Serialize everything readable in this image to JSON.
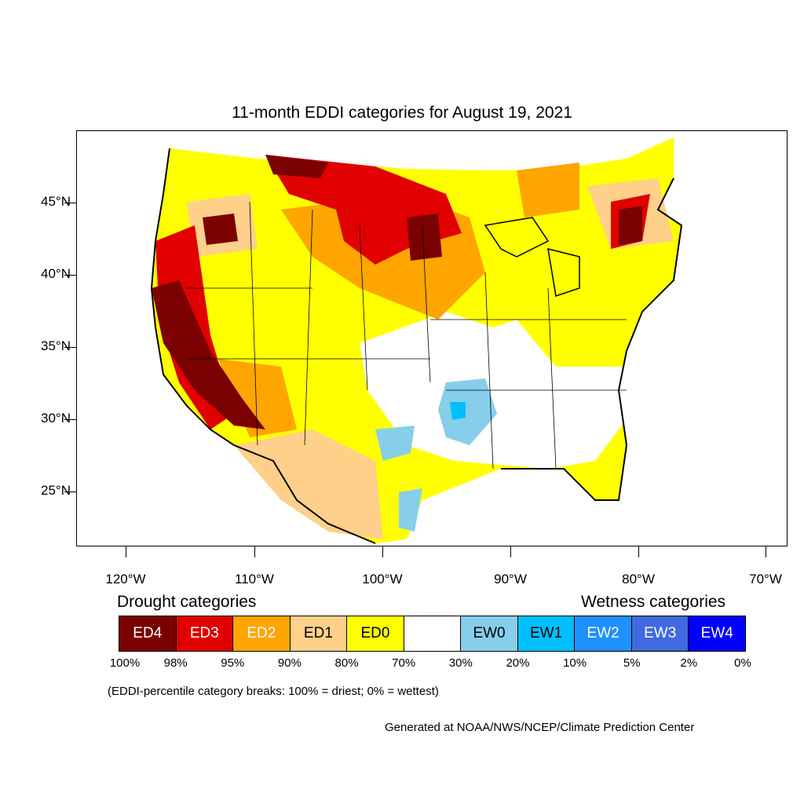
{
  "title": "11-month EDDI categories for August 19, 2021",
  "axes": {
    "lat_labels": [
      "45°N",
      "40°N",
      "35°N",
      "30°N",
      "25°N"
    ],
    "lon_labels": [
      "120°W",
      "110°W",
      "100°W",
      "90°W",
      "80°W",
      "70°W"
    ]
  },
  "legend": {
    "drought_heading": "Drought categories",
    "wetness_heading": "Wetness categories",
    "categories": [
      {
        "label": "ED4",
        "color": "#7b0000",
        "text_color": "#ffffff"
      },
      {
        "label": "ED3",
        "color": "#e00000",
        "text_color": "#ffffff"
      },
      {
        "label": "ED2",
        "color": "#ffa500",
        "text_color": "#ffffff"
      },
      {
        "label": "ED1",
        "color": "#fed08a",
        "text_color": "#000000"
      },
      {
        "label": "ED0",
        "color": "#ffff00",
        "text_color": "#000000"
      },
      {
        "label": "",
        "color": "#ffffff",
        "text_color": "#000000"
      },
      {
        "label": "EW0",
        "color": "#87ceeb",
        "text_color": "#000000"
      },
      {
        "label": "EW1",
        "color": "#00bfff",
        "text_color": "#000000"
      },
      {
        "label": "EW2",
        "color": "#1e90ff",
        "text_color": "#ffffff"
      },
      {
        "label": "EW3",
        "color": "#4169e1",
        "text_color": "#ffffff"
      },
      {
        "label": "EW4",
        "color": "#0000ff",
        "text_color": "#ffffff"
      }
    ],
    "breaks": [
      "100%",
      "98%",
      "95%",
      "90%",
      "80%",
      "70%",
      "30%",
      "20%",
      "10%",
      "5%",
      "2%",
      "0%"
    ]
  },
  "note": "(EDDI-percentile category breaks: 100% = driest; 0% = wettest)",
  "credit": "Generated at NOAA/NWS/NCEP/Climate Prediction Center"
}
